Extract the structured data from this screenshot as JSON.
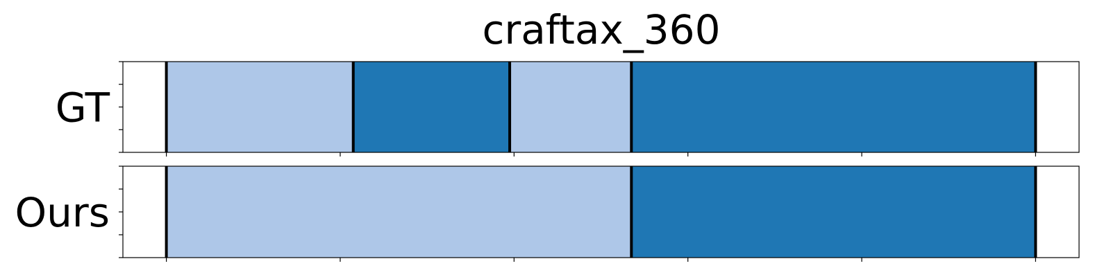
{
  "chart_data": {
    "type": "segmentation-timeline",
    "title": "craftax_360",
    "x_range": [
      -0.5,
      10.5
    ],
    "colors": {
      "a": "#aec7e8",
      "b": "#1f77b4",
      "boundary": "#000000",
      "background": "#ffffff"
    },
    "x_ticks": [
      0,
      2,
      4,
      6,
      8,
      10
    ],
    "rows": [
      {
        "label": "GT",
        "segments": [
          {
            "start": 0.0,
            "end": 2.15,
            "class": "a"
          },
          {
            "start": 2.15,
            "end": 3.95,
            "class": "b"
          },
          {
            "start": 3.95,
            "end": 5.35,
            "class": "a"
          },
          {
            "start": 5.35,
            "end": 10.0,
            "class": "b"
          }
        ]
      },
      {
        "label": "Ours",
        "segments": [
          {
            "start": 0.0,
            "end": 5.35,
            "class": "a"
          },
          {
            "start": 5.35,
            "end": 10.0,
            "class": "b"
          }
        ]
      }
    ]
  }
}
